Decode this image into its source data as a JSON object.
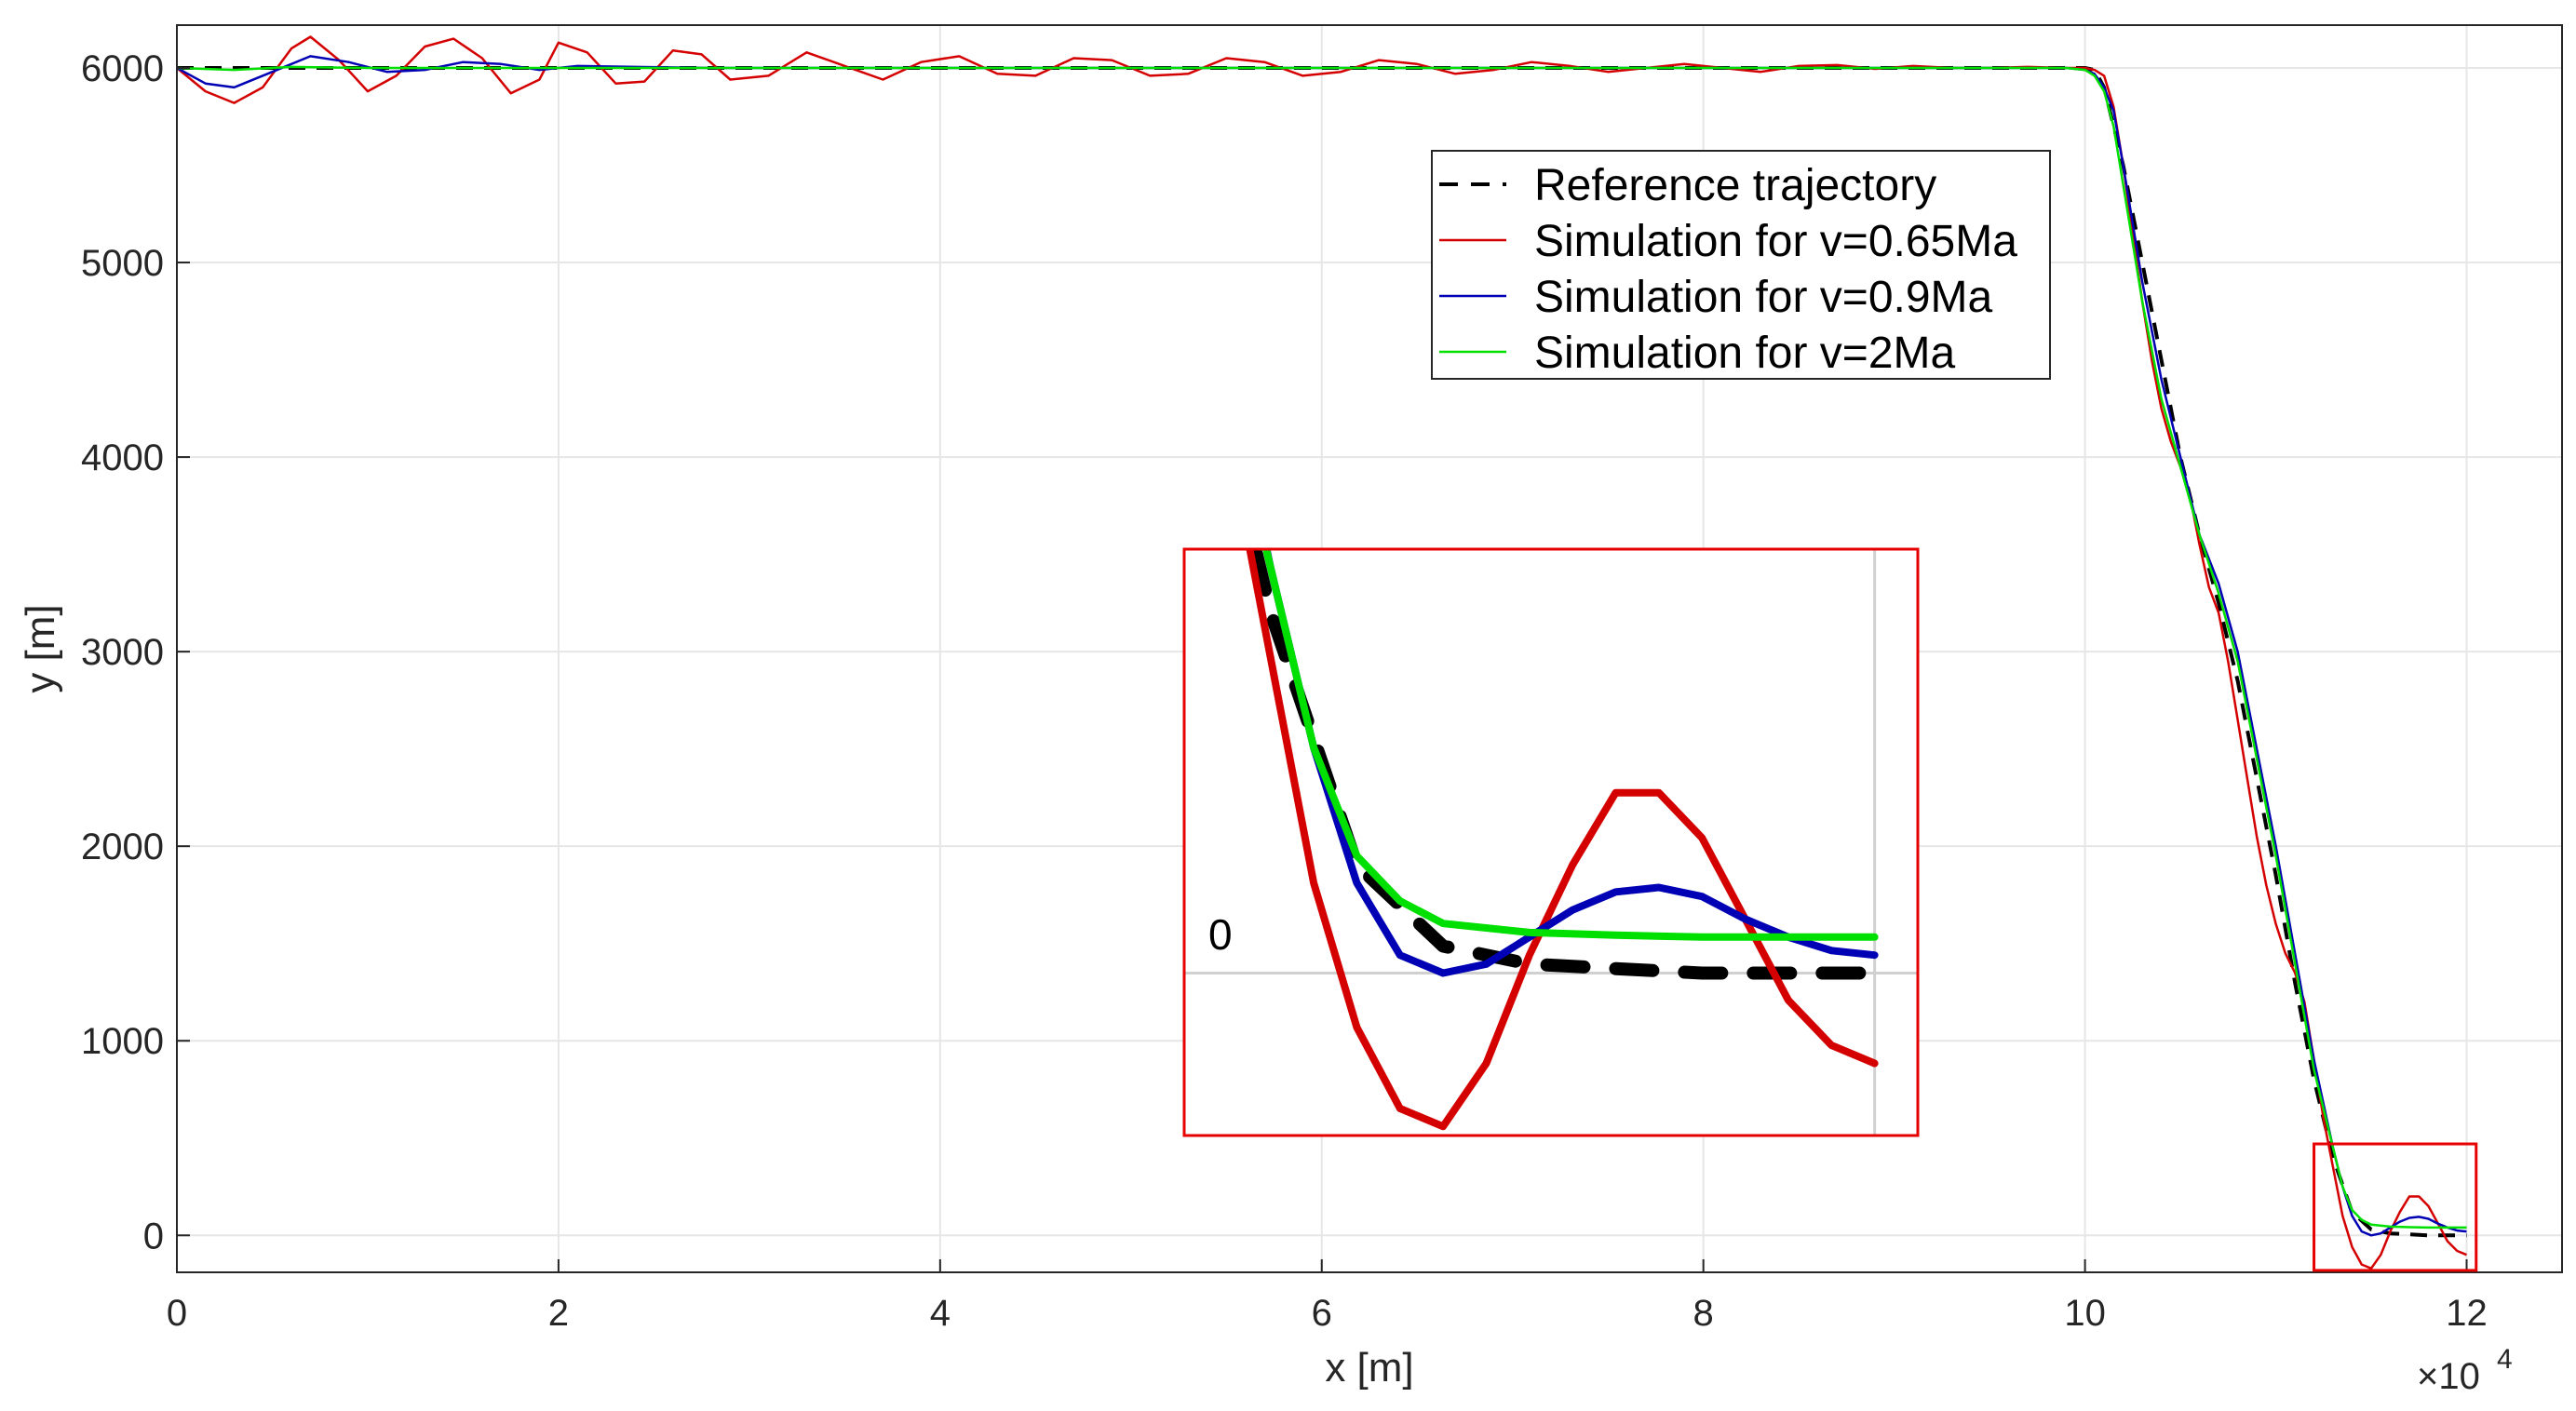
{
  "chart_data": {
    "type": "line",
    "title": "",
    "xlabel": "x [m]",
    "ylabel": "y [m]",
    "x_exponent_label": "×10",
    "x_exponent_power": "4",
    "xlim": [
      0,
      12.5
    ],
    "ylim": [
      -190,
      6220
    ],
    "x_ticks": [
      0,
      2,
      4,
      6,
      8,
      10,
      12
    ],
    "x_tick_labels": [
      "0",
      "2",
      "4",
      "6",
      "8",
      "10",
      "12"
    ],
    "y_ticks": [
      0,
      1000,
      2000,
      3000,
      4000,
      5000,
      6000
    ],
    "y_tick_labels": [
      "0",
      "1000",
      "2000",
      "3000",
      "4000",
      "5000",
      "6000"
    ],
    "grid": true,
    "legend_position": "upper-middle-right",
    "series": [
      {
        "name": "Reference trajectory",
        "color": "#000000",
        "style": "dashed",
        "x": [
          0,
          2,
          4,
          6,
          8,
          9.5,
          10.0,
          10.05,
          10.1,
          10.2,
          10.3,
          10.4,
          10.5,
          10.6,
          10.7,
          10.8,
          10.9,
          11.0,
          11.1,
          11.2,
          11.3,
          11.4,
          11.5,
          11.6,
          11.7,
          11.8,
          11.9,
          12.0
        ],
        "y": [
          6000,
          6000,
          6000,
          6000,
          6000,
          6000,
          6000,
          5990,
          5900,
          5500,
          5000,
          4500,
          4000,
          3600,
          3250,
          2850,
          2350,
          1850,
          1300,
          800,
          400,
          120,
          30,
          10,
          5,
          0,
          0,
          0
        ]
      },
      {
        "name": "Simulation for v=0.65Ma",
        "color": "#d40000",
        "style": "solid",
        "x": [
          0,
          0.15,
          0.3,
          0.45,
          0.6,
          0.7,
          0.85,
          1.0,
          1.15,
          1.3,
          1.45,
          1.6,
          1.75,
          1.9,
          2.0,
          2.15,
          2.3,
          2.45,
          2.6,
          2.75,
          2.9,
          3.1,
          3.3,
          3.5,
          3.7,
          3.9,
          4.1,
          4.3,
          4.5,
          4.7,
          4.9,
          5.1,
          5.3,
          5.5,
          5.7,
          5.9,
          6.1,
          6.3,
          6.5,
          6.7,
          6.9,
          7.1,
          7.3,
          7.5,
          7.7,
          7.9,
          8.1,
          8.3,
          8.5,
          8.7,
          8.9,
          9.1,
          9.3,
          9.5,
          9.7,
          9.9,
          10.0,
          10.05,
          10.1,
          10.15,
          10.2,
          10.25,
          10.3,
          10.35,
          10.4,
          10.45,
          10.5,
          10.55,
          10.6,
          10.65,
          10.7,
          10.75,
          10.8,
          10.85,
          10.9,
          10.95,
          11.0,
          11.05,
          11.1,
          11.15,
          11.2,
          11.25,
          11.3,
          11.35,
          11.4,
          11.45,
          11.5,
          11.55,
          11.6,
          11.65,
          11.7,
          11.75,
          11.8,
          11.85,
          11.9,
          11.95,
          12.0
        ],
        "y": [
          6000,
          5880,
          5820,
          5900,
          6100,
          6160,
          6040,
          5880,
          5960,
          6110,
          6150,
          6050,
          5870,
          5940,
          6130,
          6080,
          5920,
          5930,
          6090,
          6070,
          5940,
          5960,
          6080,
          6010,
          5940,
          6030,
          6060,
          5970,
          5960,
          6050,
          6040,
          5960,
          5970,
          6050,
          6030,
          5960,
          5980,
          6040,
          6020,
          5970,
          5990,
          6030,
          6010,
          5980,
          6000,
          6020,
          6000,
          5980,
          6010,
          6015,
          5995,
          6010,
          6000,
          6000,
          6005,
          6000,
          6000,
          5990,
          5960,
          5800,
          5500,
          5150,
          4800,
          4500,
          4250,
          4080,
          3950,
          3800,
          3550,
          3330,
          3200,
          2950,
          2650,
          2350,
          2050,
          1800,
          1600,
          1450,
          1350,
          1200,
          900,
          600,
          350,
          100,
          -60,
          -150,
          -170,
          -100,
          20,
          120,
          200,
          200,
          150,
          60,
          -30,
          -80,
          -100
        ]
      },
      {
        "name": "Simulation for v=0.9Ma",
        "color": "#0000b4",
        "style": "solid",
        "x": [
          0,
          0.15,
          0.3,
          0.5,
          0.7,
          0.9,
          1.1,
          1.3,
          1.5,
          1.7,
          1.9,
          2.1,
          2.4,
          2.8,
          3.5,
          5.0,
          7.0,
          9.0,
          9.9,
          10.0,
          10.05,
          10.1,
          10.15,
          10.2,
          10.3,
          10.4,
          10.5,
          10.6,
          10.7,
          10.8,
          10.9,
          11.0,
          11.1,
          11.2,
          11.3,
          11.35,
          11.4,
          11.45,
          11.5,
          11.55,
          11.6,
          11.65,
          11.7,
          11.75,
          11.8,
          11.85,
          11.9,
          11.95,
          12.0
        ],
        "y": [
          6000,
          5920,
          5900,
          5980,
          6060,
          6030,
          5980,
          5990,
          6030,
          6020,
          5990,
          6010,
          6005,
          6000,
          6000,
          6000,
          6000,
          6000,
          6000,
          5990,
          5970,
          5900,
          5780,
          5500,
          4900,
          4400,
          4000,
          3600,
          3350,
          3000,
          2500,
          2000,
          1450,
          900,
          450,
          250,
          100,
          20,
          0,
          10,
          40,
          70,
          90,
          95,
          85,
          60,
          40,
          25,
          20
        ]
      },
      {
        "name": "Simulation for v=2Ma",
        "color": "#00e000",
        "style": "solid",
        "x": [
          0,
          0.3,
          0.6,
          1.0,
          2.0,
          4.0,
          6.0,
          8.0,
          9.9,
          10.0,
          10.05,
          10.1,
          10.15,
          10.2,
          10.3,
          10.4,
          10.5,
          10.6,
          10.7,
          10.8,
          10.9,
          11.0,
          11.1,
          11.2,
          11.3,
          11.35,
          11.4,
          11.45,
          11.5,
          11.6,
          11.7,
          11.8,
          11.9,
          12.0
        ],
        "y": [
          6000,
          5990,
          6005,
          6000,
          6000,
          6000,
          6000,
          6000,
          6000,
          5990,
          5960,
          5880,
          5700,
          5400,
          4800,
          4300,
          3950,
          3600,
          3300,
          2950,
          2450,
          1950,
          1400,
          850,
          450,
          250,
          130,
          80,
          55,
          45,
          42,
          40,
          40,
          40
        ]
      }
    ],
    "inset": {
      "region_x": [
        11.2,
        12.05
      ],
      "region_y": [
        -180,
        470
      ],
      "zero_label": "0"
    }
  },
  "legend": {
    "items": [
      {
        "label": "Reference trajectory",
        "color": "#000000",
        "dash": "20,14"
      },
      {
        "label": "Simulation for v=0.65Ma",
        "color": "#d40000",
        "dash": ""
      },
      {
        "label": "Simulation for v=0.9Ma",
        "color": "#0000b4",
        "dash": ""
      },
      {
        "label": "Simulation for v=2Ma",
        "color": "#00e000",
        "dash": ""
      }
    ]
  }
}
